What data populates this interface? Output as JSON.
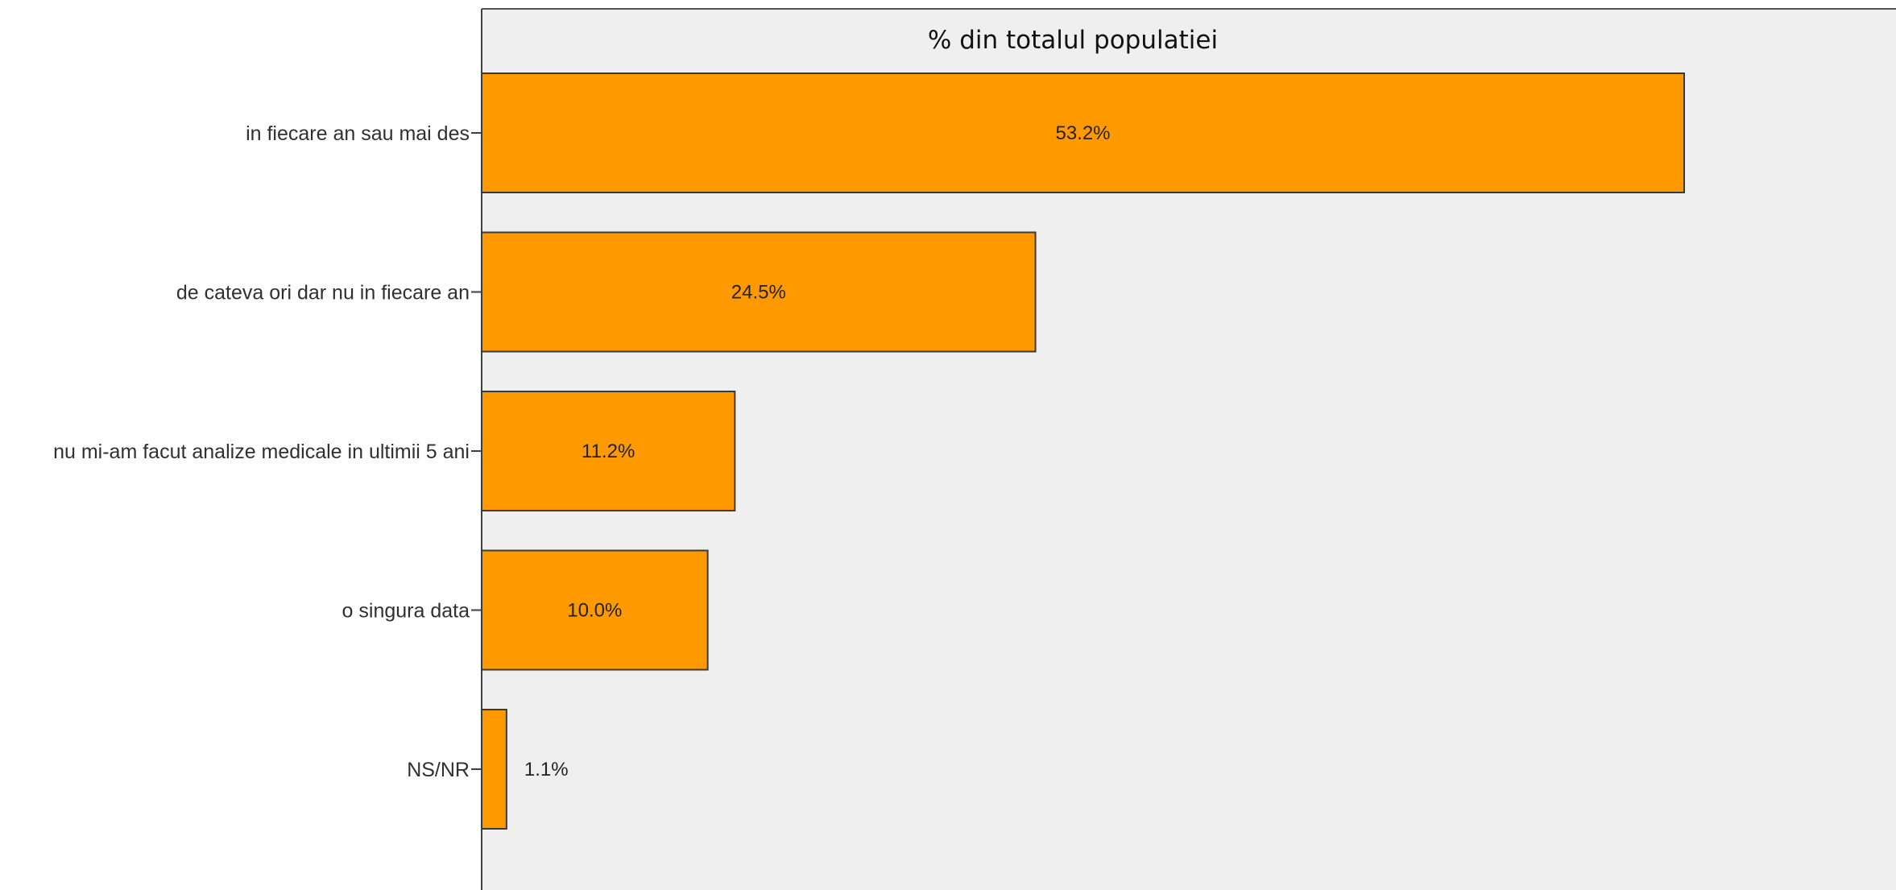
{
  "chart_data": {
    "type": "bar",
    "orientation": "horizontal",
    "title": "% din totalul populatiei",
    "categories": [
      "in fiecare an sau mai des",
      "de cateva ori dar nu in fiecare an",
      "nu mi-am facut analize medicale in ultimii 5 ani",
      "o singura data",
      "NS/NR"
    ],
    "values": [
      53.2,
      24.5,
      11.2,
      10.0,
      1.1
    ],
    "value_labels": [
      "53.2%",
      "24.5%",
      "11.2%",
      "10.0%",
      "1.1%"
    ],
    "xlim": [
      0,
      62
    ],
    "grid": false,
    "legend": "none",
    "colors": {
      "bar_fill": "#FF9900",
      "bar_stroke": "#3a3a3a",
      "plot_background": "#EFEFEF",
      "axis": "#404040"
    }
  }
}
